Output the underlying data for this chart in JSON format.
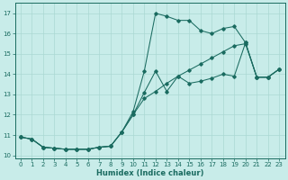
{
  "xlabel": "Humidex (Indice chaleur)",
  "background_color": "#c8ece9",
  "grid_color": "#aad8d3",
  "line_color": "#1a6b60",
  "xlim": [
    -0.5,
    23.5
  ],
  "ylim": [
    9.85,
    17.5
  ],
  "yticks": [
    10,
    11,
    12,
    13,
    14,
    15,
    16,
    17
  ],
  "xticks": [
    0,
    1,
    2,
    3,
    4,
    5,
    6,
    7,
    8,
    9,
    10,
    11,
    12,
    13,
    14,
    15,
    16,
    17,
    18,
    19,
    20,
    21,
    22,
    23
  ],
  "series1_y": [
    10.9,
    10.8,
    10.4,
    10.35,
    10.3,
    10.3,
    10.3,
    10.4,
    10.45,
    11.15,
    12.0,
    12.8,
    13.15,
    13.55,
    13.9,
    14.2,
    14.5,
    14.8,
    15.1,
    15.4,
    15.5,
    13.85,
    13.85,
    14.25
  ],
  "series2_y": [
    10.9,
    10.8,
    10.4,
    10.35,
    10.3,
    10.3,
    10.3,
    10.4,
    10.45,
    11.15,
    12.15,
    14.15,
    17.0,
    16.85,
    16.65,
    16.65,
    16.15,
    16.0,
    16.25,
    16.35,
    15.55,
    13.85,
    13.85,
    14.25
  ],
  "series3_y": [
    10.9,
    10.8,
    10.4,
    10.35,
    10.3,
    10.3,
    10.3,
    10.4,
    10.45,
    11.15,
    12.0,
    13.1,
    14.15,
    13.15,
    13.9,
    13.55,
    13.65,
    13.8,
    14.0,
    13.9,
    15.55,
    13.85,
    13.85,
    14.25
  ]
}
